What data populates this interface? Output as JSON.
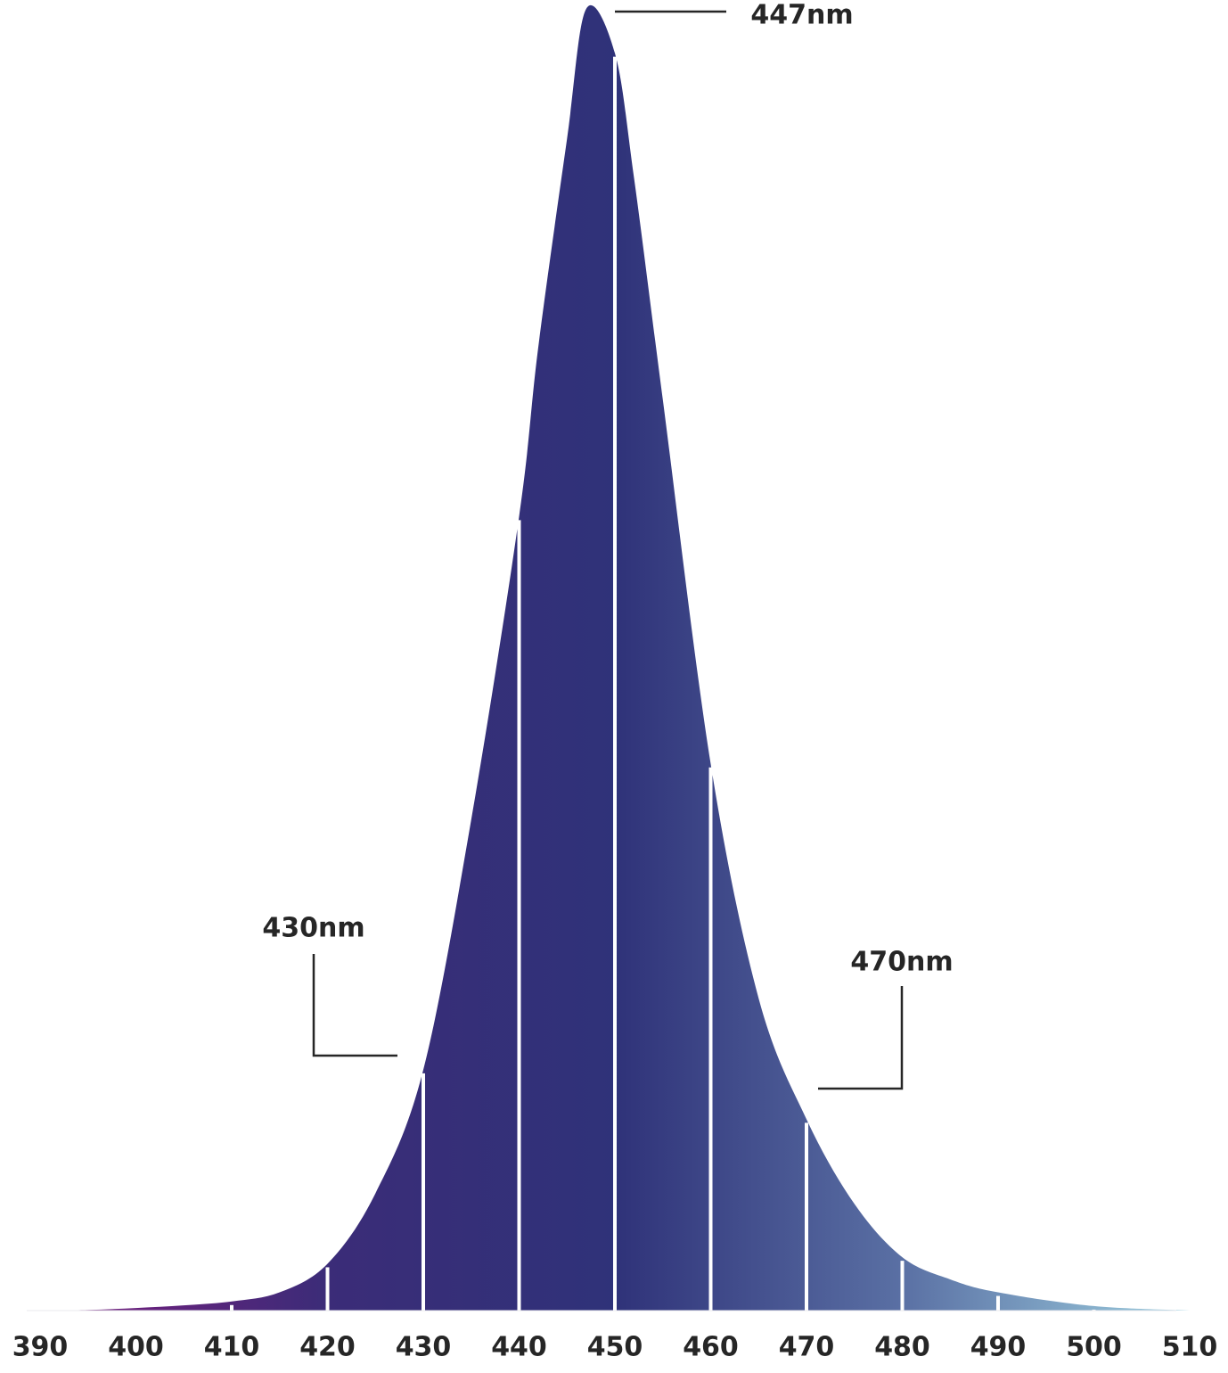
{
  "chart_data": {
    "type": "area",
    "x": [
      390,
      395,
      400,
      405,
      410,
      415,
      420,
      425,
      430,
      435,
      440,
      442,
      445,
      447,
      450,
      452,
      455,
      460,
      465,
      470,
      475,
      480,
      485,
      490,
      500,
      510
    ],
    "values": [
      0,
      0.05,
      0.2,
      0.4,
      0.7,
      1.4,
      3.6,
      9,
      18.5,
      37.7,
      61,
      74,
      90,
      100,
      96.6,
      87,
      70,
      42,
      24,
      14.7,
      8.2,
      4.1,
      2.4,
      1.4,
      0.35,
      0
    ],
    "xlim": [
      390,
      510
    ],
    "ylim": [
      0,
      100
    ],
    "xticks": [
      390,
      400,
      410,
      420,
      430,
      440,
      450,
      460,
      470,
      480,
      490,
      500,
      510
    ],
    "gradient": [
      "#7d1c7f",
      "#3b2c78",
      "#2f3279",
      "#5a70a4",
      "#9dcfdf"
    ],
    "annotations": [
      "447nm",
      "430nm",
      "470nm"
    ]
  }
}
